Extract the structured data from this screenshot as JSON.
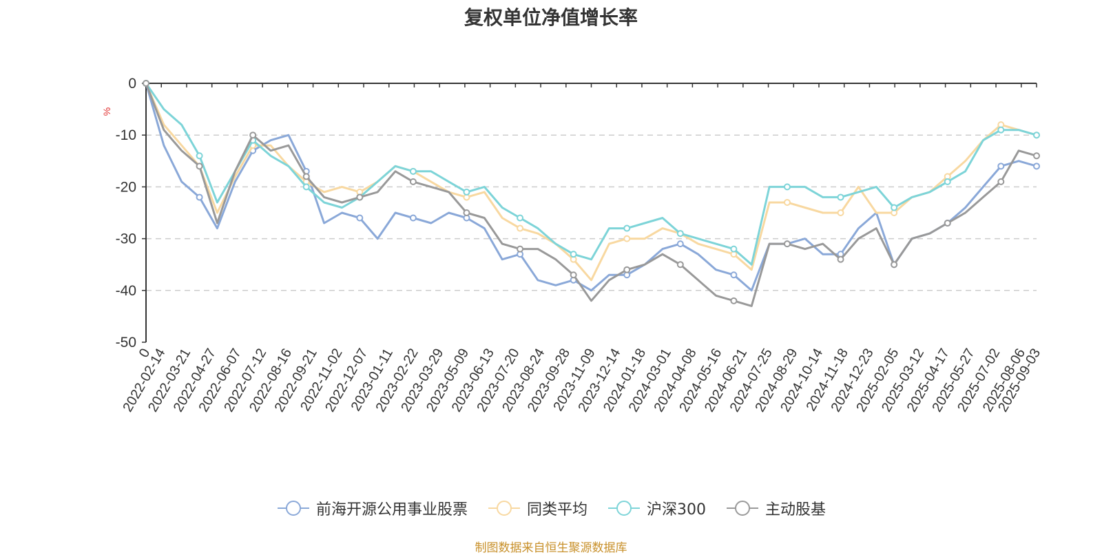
{
  "title": "复权单位净值增长率",
  "source": "制图数据来自恒生聚源数据库",
  "chart_data": {
    "type": "line",
    "ylabel": "%",
    "ylim": [
      -50,
      0
    ],
    "yticks": [
      0,
      -10,
      -20,
      -30,
      -40,
      -50
    ],
    "x_tick_labels": [
      "0",
      "2022-02-14",
      "2022-03-21",
      "2022-04-27",
      "2022-06-07",
      "2022-07-12",
      "2022-08-16",
      "2022-09-21",
      "2022-11-02",
      "2022-12-07",
      "2023-01-11",
      "2023-02-22",
      "2023-03-29",
      "2023-05-09",
      "2023-06-13",
      "2023-07-20",
      "2023-08-24",
      "2023-09-28",
      "2023-11-09",
      "2023-12-14",
      "2024-01-18",
      "2024-03-01",
      "2024-04-08",
      "2024-05-16",
      "2024-06-21",
      "2024-07-25",
      "2024-08-29",
      "2024-10-14",
      "2024-11-18",
      "2024-12-23",
      "2025-02-05",
      "2025-03-12",
      "2025-04-17",
      "2025-05-27",
      "2025-07-02",
      "2025-08-06",
      "2025-09-03"
    ],
    "grid": "horizontal dashed",
    "legend_position": "bottom",
    "series": [
      {
        "name": "前海开源公用事业股票",
        "color": "#8aa8d8",
        "values": [
          0,
          -12,
          -19,
          -22,
          -28,
          -19,
          -13,
          -11,
          -10,
          -17,
          -27,
          -25,
          -26,
          -30,
          -25,
          -26,
          -27,
          -25,
          -26,
          -28,
          -34,
          -33,
          -38,
          -39,
          -38,
          -40,
          -37,
          -37,
          -35,
          -32,
          -31,
          -33,
          -36,
          -37,
          -40,
          -31,
          -31,
          -30,
          -33,
          -33,
          -28,
          -25,
          -35,
          -30,
          -29,
          -27,
          -24,
          -20,
          -16,
          -15,
          -16
        ]
      },
      {
        "name": "同类平均",
        "color": "#f8d8a0",
        "values": [
          0,
          -8,
          -12,
          -16,
          -25,
          -18,
          -12,
          -12,
          -16,
          -19,
          -21,
          -20,
          -21,
          -19,
          -16,
          -17,
          -19,
          -21,
          -22,
          -21,
          -26,
          -28,
          -29,
          -31,
          -34,
          -38,
          -31,
          -30,
          -30,
          -28,
          -29,
          -31,
          -32,
          -33,
          -36,
          -23,
          -23,
          -24,
          -25,
          -25,
          -20,
          -25,
          -25,
          -22,
          -21,
          -18,
          -15,
          -11,
          -8,
          -9,
          -10
        ]
      },
      {
        "name": "沪深300",
        "color": "#7dd4d8",
        "values": [
          0,
          -5,
          -8,
          -14,
          -23,
          -17,
          -11,
          -14,
          -16,
          -20,
          -23,
          -24,
          -22,
          -19,
          -16,
          -17,
          -17,
          -19,
          -21,
          -20,
          -24,
          -26,
          -28,
          -31,
          -33,
          -34,
          -28,
          -28,
          -27,
          -26,
          -29,
          -30,
          -31,
          -32,
          -35,
          -20,
          -20,
          -20,
          -22,
          -22,
          -21,
          -20,
          -24,
          -22,
          -21,
          -19,
          -17,
          -11,
          -9,
          -9,
          -10
        ]
      },
      {
        "name": "主动股基",
        "color": "#999999",
        "values": [
          0,
          -9,
          -13,
          -16,
          -27,
          -17,
          -10,
          -13,
          -12,
          -18,
          -22,
          -23,
          -22,
          -21,
          -17,
          -19,
          -20,
          -21,
          -25,
          -26,
          -31,
          -32,
          -32,
          -34,
          -37,
          -42,
          -38,
          -36,
          -35,
          -33,
          -35,
          -38,
          -41,
          -42,
          -43,
          -31,
          -31,
          -32,
          -31,
          -34,
          -30,
          -28,
          -35,
          -30,
          -29,
          -27,
          -25,
          -22,
          -19,
          -13,
          -14
        ]
      }
    ]
  }
}
